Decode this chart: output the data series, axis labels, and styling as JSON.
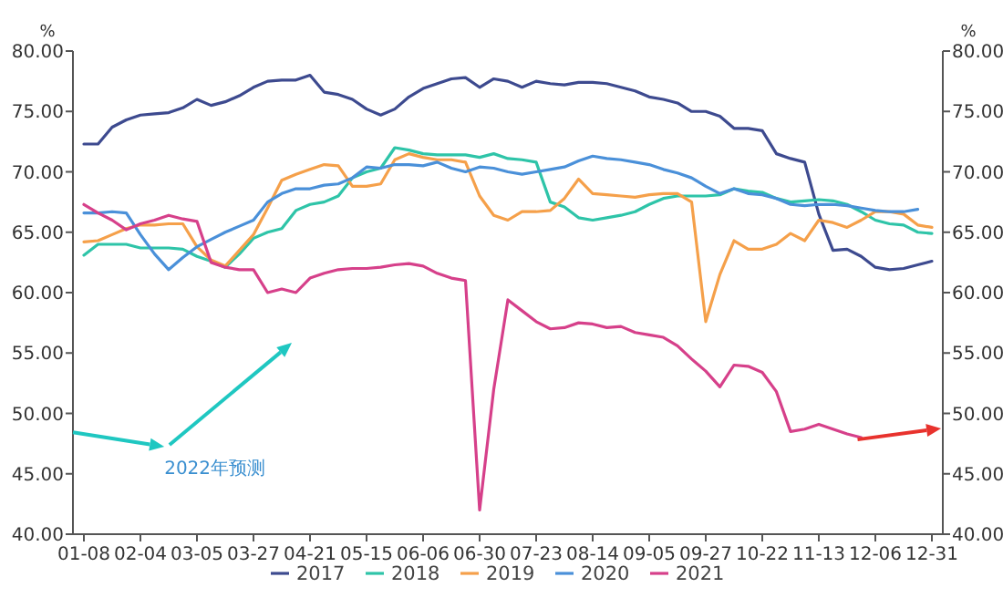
{
  "chart_data": {
    "type": "line",
    "categories": [
      "01-08",
      null,
      null,
      null,
      "02-04",
      null,
      null,
      null,
      "03-05",
      null,
      null,
      null,
      "03-27",
      null,
      null,
      null,
      "04-21",
      null,
      null,
      null,
      "05-15",
      null,
      null,
      null,
      "06-06",
      null,
      null,
      null,
      "06-30",
      null,
      null,
      null,
      "07-23",
      null,
      null,
      null,
      "08-14",
      null,
      null,
      null,
      "09-05",
      null,
      null,
      null,
      "09-27",
      null,
      null,
      null,
      "10-22",
      null,
      null,
      null,
      "11-13",
      null,
      null,
      null,
      "12-06",
      null,
      null,
      null,
      "12-31"
    ],
    "series": [
      {
        "name": "2017",
        "color": "#3d4a8f",
        "values": [
          72.3,
          72.3,
          73.7,
          74.3,
          74.7,
          74.8,
          74.9,
          75.3,
          76.0,
          75.5,
          75.8,
          76.3,
          77.0,
          77.5,
          77.6,
          77.6,
          78.0,
          76.6,
          76.4,
          76.0,
          75.2,
          74.7,
          75.2,
          76.2,
          76.9,
          77.3,
          77.7,
          77.8,
          77.0,
          77.7,
          77.5,
          77.0,
          77.5,
          77.3,
          77.2,
          77.4,
          77.4,
          77.3,
          77.0,
          76.7,
          76.2,
          76.0,
          75.7,
          75.0,
          75.0,
          74.6,
          73.6,
          73.6,
          73.4,
          71.5,
          71.1,
          70.8,
          66.5,
          63.5,
          63.6,
          63.0,
          62.1,
          61.9,
          62.0,
          62.3,
          62.6
        ]
      },
      {
        "name": "2018",
        "color": "#2ec4a8",
        "values": [
          63.1,
          64.0,
          64.0,
          64.0,
          63.7,
          63.7,
          63.7,
          63.6,
          63.0,
          62.6,
          62.1,
          63.2,
          64.5,
          65.0,
          65.3,
          66.8,
          67.3,
          67.5,
          68.0,
          69.5,
          70.0,
          70.3,
          72.0,
          71.8,
          71.5,
          71.4,
          71.4,
          71.4,
          71.2,
          71.5,
          71.1,
          71.0,
          70.8,
          67.5,
          67.1,
          66.2,
          66.0,
          66.2,
          66.4,
          66.7,
          67.3,
          67.8,
          68.0,
          68.0,
          68.0,
          68.1,
          68.6,
          68.4,
          68.3,
          67.8,
          67.5,
          67.6,
          67.7,
          67.6,
          67.3,
          66.7,
          66.0,
          65.7,
          65.6,
          65.0,
          64.9
        ]
      },
      {
        "name": "2019",
        "color": "#f5a04a",
        "values": [
          64.2,
          64.3,
          64.8,
          65.3,
          65.6,
          65.6,
          65.7,
          65.7,
          63.8,
          62.7,
          62.2,
          63.5,
          64.8,
          67.0,
          69.3,
          69.8,
          70.2,
          70.6,
          70.5,
          68.8,
          68.8,
          69.0,
          71.0,
          71.5,
          71.2,
          71.0,
          71.0,
          70.8,
          68.0,
          66.4,
          66.0,
          66.7,
          66.7,
          66.8,
          67.8,
          69.4,
          68.2,
          68.1,
          68.0,
          67.9,
          68.1,
          68.2,
          68.2,
          67.5,
          57.6,
          61.5,
          64.3,
          63.6,
          63.6,
          64.0,
          64.9,
          64.3,
          66.0,
          65.8,
          65.4,
          66.0,
          66.7,
          66.7,
          66.5,
          65.6,
          65.4
        ]
      },
      {
        "name": "2020",
        "color": "#4a90d9",
        "values": [
          66.6,
          66.6,
          66.7,
          66.6,
          64.8,
          63.2,
          61.9,
          62.9,
          63.8,
          64.4,
          65.0,
          65.5,
          66.0,
          67.5,
          68.2,
          68.6,
          68.6,
          68.9,
          69.0,
          69.5,
          70.4,
          70.3,
          70.6,
          70.6,
          70.5,
          70.8,
          70.3,
          70.0,
          70.4,
          70.3,
          70.0,
          69.8,
          70.0,
          70.2,
          70.4,
          70.9,
          71.3,
          71.1,
          71.0,
          70.8,
          70.6,
          70.2,
          69.9,
          69.5,
          68.8,
          68.2,
          68.6,
          68.2,
          68.1,
          67.8,
          67.3,
          67.2,
          67.3,
          67.3,
          67.2,
          67.0,
          66.8,
          66.7,
          66.7,
          66.9,
          null
        ]
      },
      {
        "name": "2021",
        "color": "#d6408a",
        "values": [
          67.3,
          66.6,
          66.0,
          65.2,
          65.7,
          66.0,
          66.4,
          66.1,
          65.9,
          62.5,
          62.1,
          61.9,
          61.9,
          60.0,
          60.3,
          60.0,
          61.2,
          61.6,
          61.9,
          62.0,
          62.0,
          62.1,
          62.3,
          62.4,
          62.2,
          61.6,
          61.2,
          61.0,
          42.0,
          52.0,
          59.4,
          58.5,
          57.6,
          57.0,
          57.1,
          57.5,
          57.4,
          57.1,
          57.2,
          56.7,
          56.5,
          56.3,
          55.6,
          54.5,
          53.5,
          52.2,
          54.0,
          53.9,
          53.4,
          51.8,
          48.5,
          48.7,
          49.1,
          48.7,
          48.3,
          48.0,
          null,
          null,
          null,
          null,
          null
        ]
      }
    ],
    "ylabel": "%",
    "y2label": "%",
    "ylim": [
      40,
      80
    ],
    "yticks": [
      {
        "value": 40,
        "label": "40.00"
      },
      {
        "value": 45,
        "label": "45.00"
      },
      {
        "value": 50,
        "label": "50.00"
      },
      {
        "value": 55,
        "label": "55.00"
      },
      {
        "value": 60,
        "label": "60.00"
      },
      {
        "value": 65,
        "label": "65.00"
      },
      {
        "value": 70,
        "label": "70.00"
      },
      {
        "value": 75,
        "label": "75.00"
      },
      {
        "value": 80,
        "label": "80.00"
      }
    ],
    "y2lim": [
      40,
      80
    ],
    "y2ticks": [
      {
        "value": 40,
        "label": "40.00"
      },
      {
        "value": 45,
        "label": "45.00"
      },
      {
        "value": 50,
        "label": "50.00"
      },
      {
        "value": 55,
        "label": "55.00"
      },
      {
        "value": 60,
        "label": "60.00"
      },
      {
        "value": 65,
        "label": "65.00"
      },
      {
        "value": 70,
        "label": "70.00"
      },
      {
        "value": 75,
        "label": "75.00"
      },
      {
        "value": 80,
        "label": "80.00"
      }
    ],
    "annotations": [
      "2022年预测"
    ],
    "legend": "bottom"
  }
}
